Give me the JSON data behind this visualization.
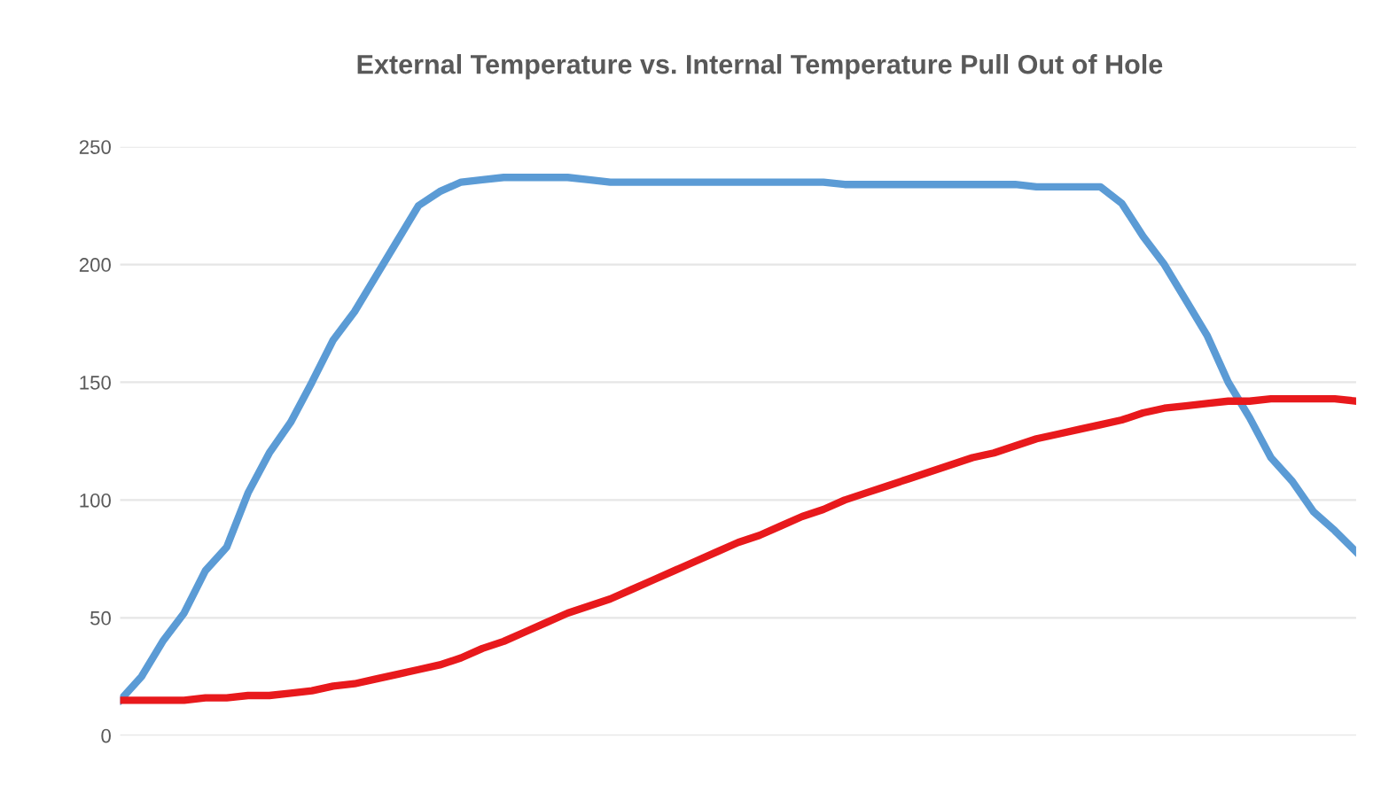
{
  "chart_data": {
    "type": "line",
    "title": "External Temperature vs. Internal Temperature Pull Out of Hole",
    "categories": [
      null,
      null,
      null,
      null,
      null,
      null,
      null,
      null,
      null,
      null,
      null,
      null,
      null,
      null,
      null,
      null,
      null,
      null,
      null,
      null,
      null,
      null,
      null,
      null,
      null,
      null,
      null,
      null,
      null,
      null,
      null,
      null,
      null,
      null,
      null,
      null,
      null,
      null,
      null,
      null,
      null,
      null,
      null,
      null,
      null,
      null,
      null,
      null,
      null,
      null,
      null,
      null,
      null,
      null,
      null,
      null,
      null,
      null,
      null
    ],
    "series": [
      {
        "color": "#5b9bd5",
        "values": [
          15,
          25,
          40,
          52,
          70,
          80,
          103,
          120,
          133,
          150,
          168,
          180,
          195,
          210,
          225,
          231,
          235,
          236,
          237,
          237,
          237,
          237,
          236,
          235,
          235,
          235,
          235,
          235,
          235,
          235,
          235,
          235,
          235,
          235,
          234,
          234,
          234,
          234,
          234,
          234,
          234,
          234,
          234,
          233,
          233,
          233,
          233,
          226,
          212,
          200,
          185,
          170,
          150,
          135,
          118,
          108,
          95,
          87,
          78
        ]
      },
      {
        "color": "#e8191c",
        "values": [
          15,
          15,
          15,
          15,
          16,
          16,
          17,
          17,
          18,
          19,
          21,
          22,
          24,
          26,
          28,
          30,
          33,
          37,
          40,
          44,
          48,
          52,
          55,
          58,
          62,
          66,
          70,
          74,
          78,
          82,
          85,
          89,
          93,
          96,
          100,
          103,
          106,
          109,
          112,
          115,
          118,
          120,
          123,
          126,
          128,
          130,
          132,
          134,
          137,
          139,
          140,
          141,
          142,
          142,
          143,
          143,
          143,
          143,
          142
        ]
      }
    ],
    "ylim": [
      0,
      250
    ],
    "yticks": [
      0,
      50,
      100,
      150,
      200,
      250
    ],
    "grid": "y",
    "tick_labels": "y",
    "legend": false,
    "marker": "none",
    "line_style": "solid"
  }
}
